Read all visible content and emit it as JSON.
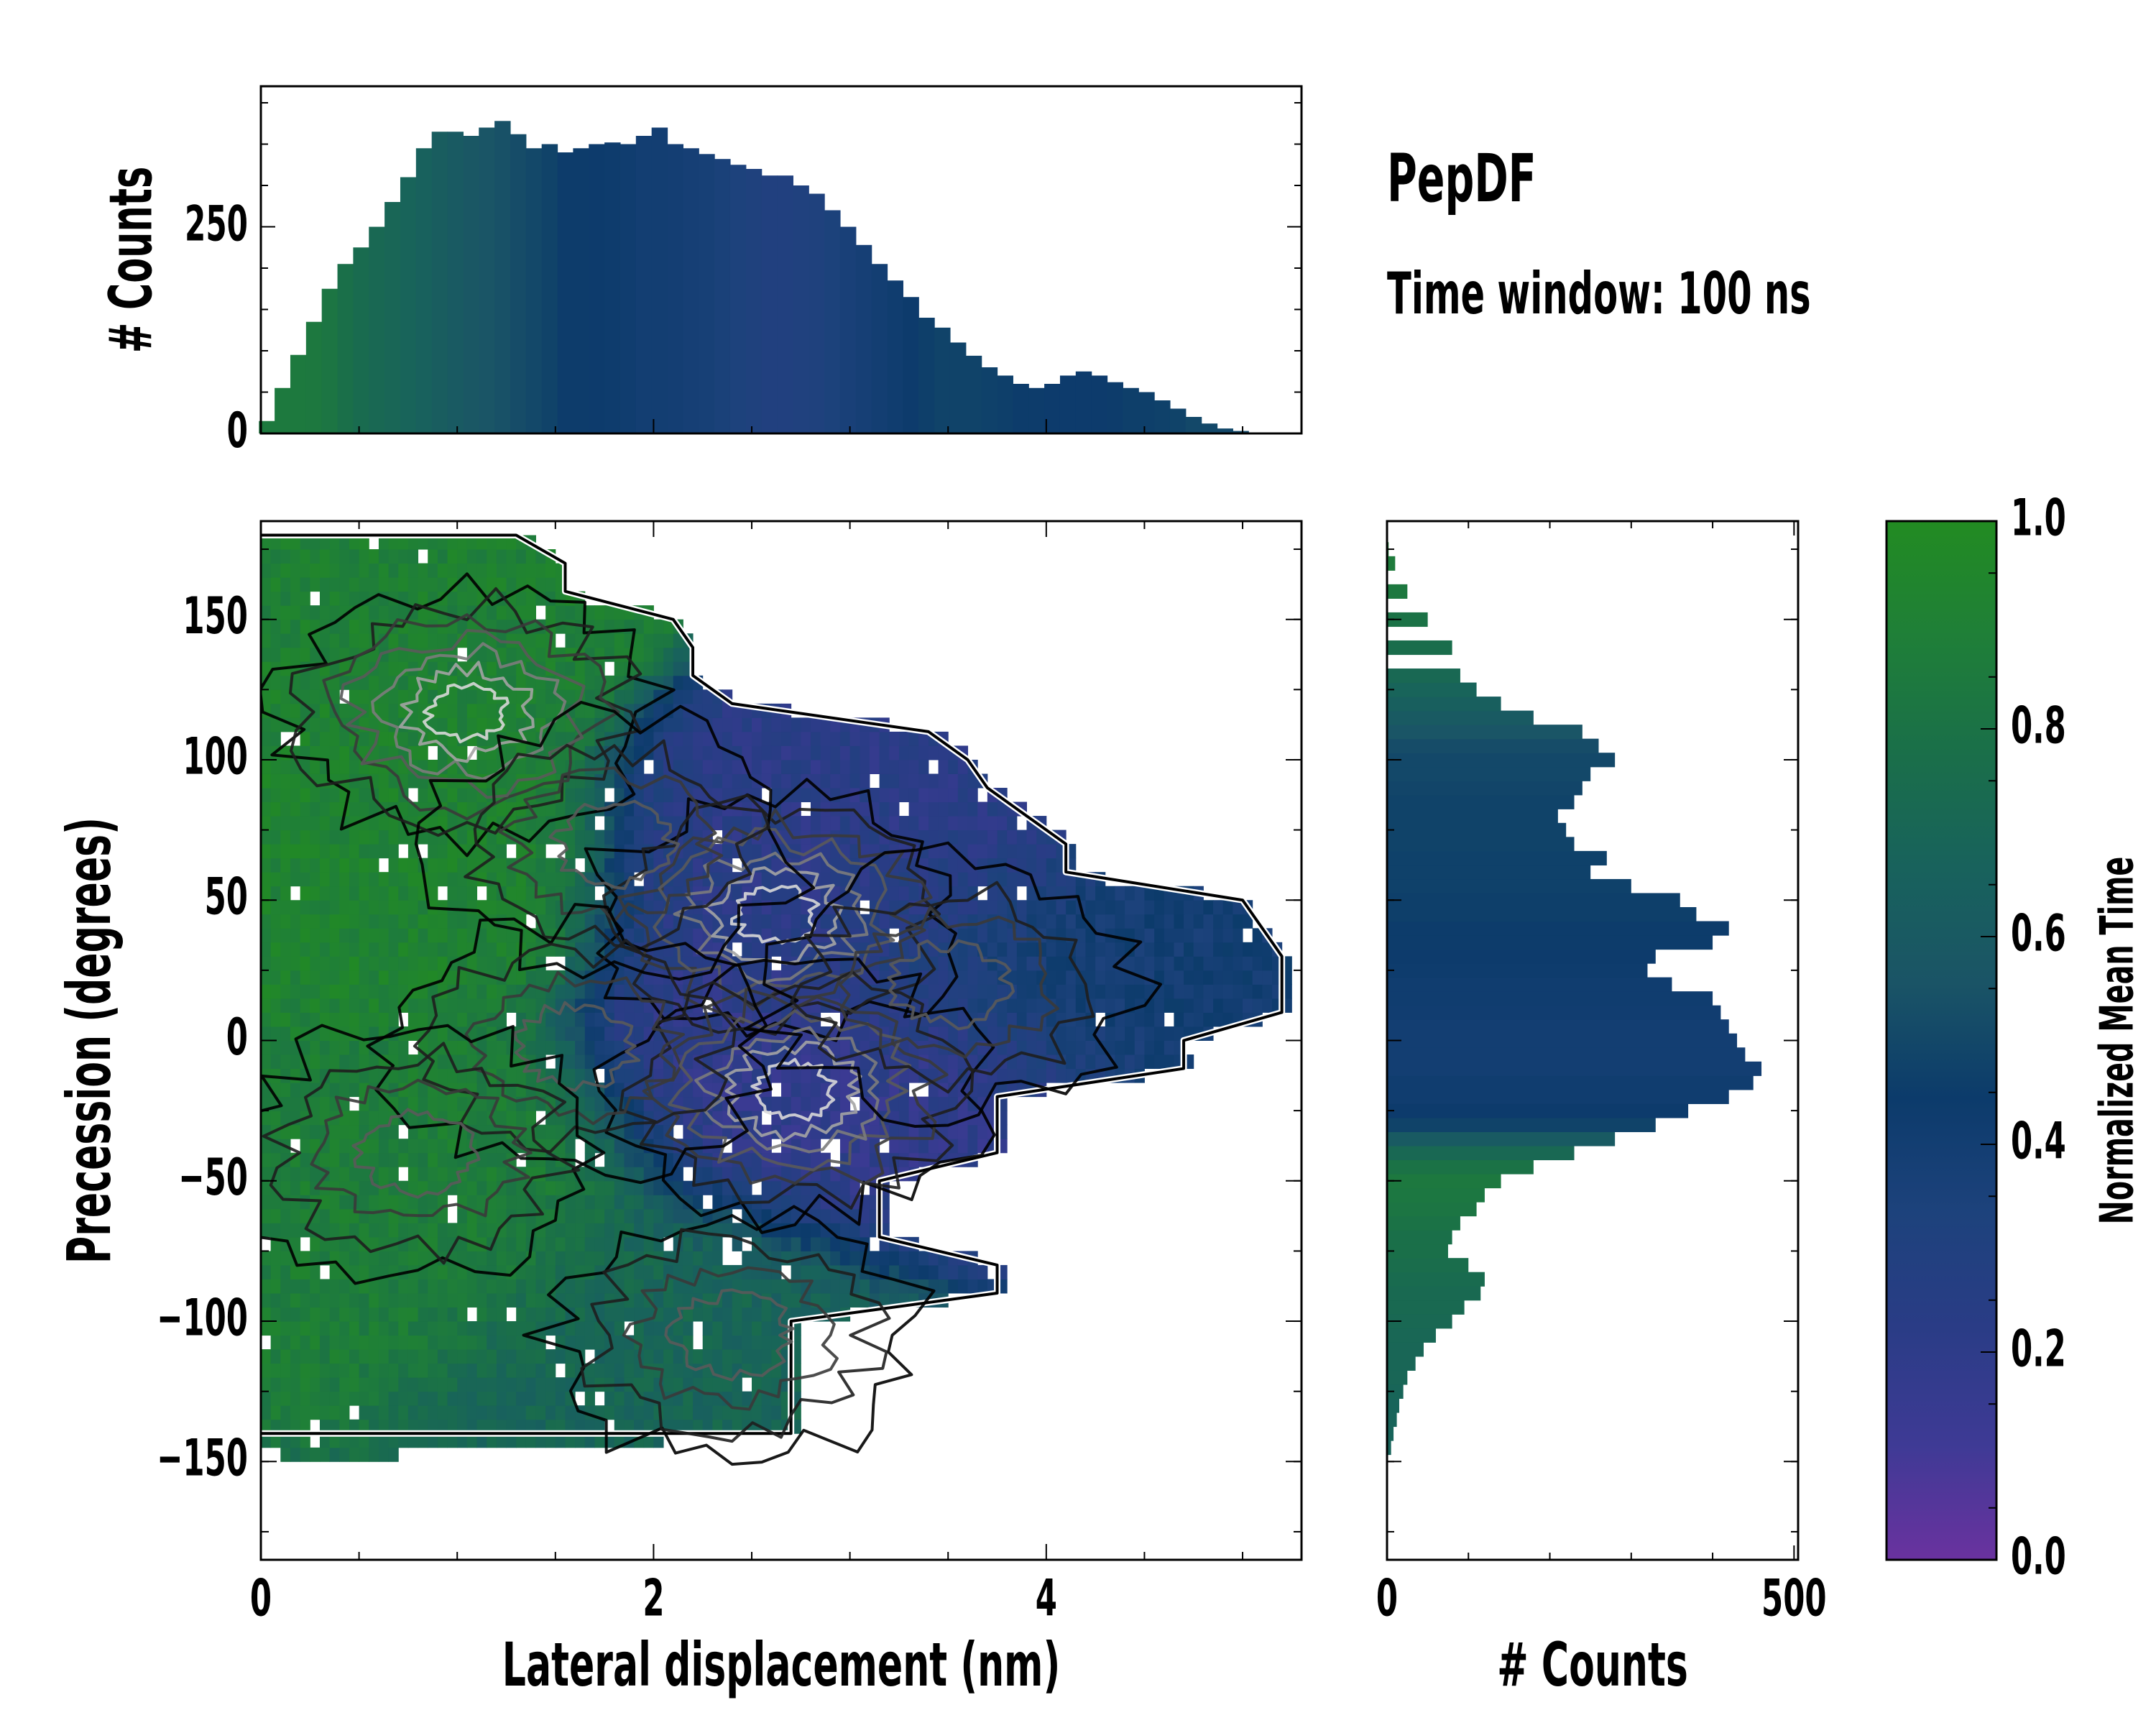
{
  "title": "PepDF",
  "subtitle": "Time window: 100 ns",
  "colors": {
    "colormap": [
      "#6a329f",
      "#3e3a95",
      "#2a3c86",
      "#1d427c",
      "#0c3b6b",
      "#1a5466",
      "#18625c",
      "#1a6f49",
      "#1f7f38",
      "#228b22"
    ],
    "contour_levels": [
      "#000000",
      "#1e1e1e",
      "#3a3a3a",
      "#5a5a5a",
      "#7c7c7c",
      "#a4a4a4",
      "#d8d8d8"
    ]
  },
  "chart_data": [
    {
      "id": "marginal-x",
      "type": "bar",
      "title": "",
      "xlabel": "",
      "ylabel": "# Counts",
      "xlim": [
        0,
        5.3
      ],
      "ylim": [
        0,
        420
      ],
      "yticks": [
        0,
        250
      ],
      "x": [
        0.03,
        0.11,
        0.19,
        0.27,
        0.35,
        0.43,
        0.51,
        0.59,
        0.67,
        0.75,
        0.83,
        0.91,
        0.99,
        1.07,
        1.15,
        1.23,
        1.31,
        1.39,
        1.47,
        1.55,
        1.63,
        1.71,
        1.79,
        1.87,
        1.95,
        2.03,
        2.11,
        2.19,
        2.27,
        2.35,
        2.43,
        2.51,
        2.59,
        2.67,
        2.75,
        2.83,
        2.91,
        2.99,
        3.07,
        3.15,
        3.23,
        3.31,
        3.39,
        3.47,
        3.55,
        3.63,
        3.71,
        3.79,
        3.87,
        3.95,
        4.03,
        4.11,
        4.19,
        4.27,
        4.35,
        4.43,
        4.51,
        4.59,
        4.67,
        4.75,
        4.83,
        4.91,
        4.99,
        5.07,
        5.15,
        5.23
      ],
      "values": [
        15,
        55,
        95,
        135,
        175,
        205,
        225,
        250,
        280,
        310,
        345,
        365,
        365,
        360,
        370,
        378,
        362,
        345,
        350,
        340,
        345,
        350,
        352,
        350,
        360,
        370,
        350,
        345,
        338,
        332,
        325,
        320,
        312,
        312,
        300,
        290,
        270,
        250,
        228,
        205,
        185,
        165,
        140,
        128,
        110,
        94,
        80,
        70,
        60,
        55,
        60,
        70,
        75,
        70,
        62,
        55,
        50,
        40,
        30,
        20,
        12,
        6,
        3,
        1,
        0,
        0
      ],
      "colorvalues": [
        0.85,
        0.85,
        0.85,
        0.84,
        0.82,
        0.78,
        0.74,
        0.72,
        0.7,
        0.68,
        0.66,
        0.63,
        0.6,
        0.58,
        0.56,
        0.54,
        0.52,
        0.5,
        0.48,
        0.45,
        0.45,
        0.44,
        0.43,
        0.42,
        0.4,
        0.4,
        0.39,
        0.38,
        0.37,
        0.35,
        0.33,
        0.32,
        0.3,
        0.3,
        0.31,
        0.32,
        0.34,
        0.36,
        0.38,
        0.4,
        0.42,
        0.44,
        0.46,
        0.48,
        0.48,
        0.48,
        0.47,
        0.46,
        0.45,
        0.45,
        0.44,
        0.44,
        0.44,
        0.44,
        0.45,
        0.46,
        0.46,
        0.47,
        0.48,
        0.5,
        0.5,
        0.5,
        0.5,
        0.5,
        0.5,
        0.5
      ]
    },
    {
      "id": "joint-heatmap",
      "type": "heatmap",
      "title": "",
      "xlabel": "Lateral displacement (nm)",
      "ylabel": "Precession (degrees)",
      "xlim": [
        0,
        5.3
      ],
      "ylim": [
        -185,
        185
      ],
      "xticks": [
        0,
        2,
        4
      ],
      "yticks": [
        -150,
        -100,
        -50,
        0,
        50,
        100,
        150
      ],
      "colorbar_range": [
        0,
        1
      ],
      "outline_angle": [
        -180,
        -170,
        -160,
        -150,
        -140,
        -130,
        -120,
        -110,
        -100,
        -90,
        -80,
        -70,
        -60,
        -50,
        -40,
        -30,
        -20,
        -10,
        0,
        10,
        20,
        30,
        40,
        50,
        60,
        70,
        80,
        90,
        100,
        110,
        120,
        130,
        140,
        150,
        160,
        170,
        180
      ],
      "outline_max_x": [
        0,
        0,
        0,
        0,
        2.7,
        2.7,
        2.7,
        2.7,
        2.7,
        3.75,
        3.75,
        3.15,
        3.15,
        3.15,
        3.75,
        3.75,
        3.75,
        4.7,
        4.7,
        5.2,
        5.2,
        5.2,
        5.1,
        5.0,
        4.1,
        4.1,
        3.9,
        3.7,
        3.6,
        3.4,
        2.4,
        2.2,
        2.2,
        2.1,
        1.55,
        1.55,
        1.3
      ],
      "clusters": [
        {
          "x": 0.5,
          "angle": 158,
          "value": 0.9
        },
        {
          "x": 0.3,
          "angle": 75,
          "value": 0.92
        },
        {
          "x": 0.6,
          "angle": -60,
          "value": 0.88
        },
        {
          "x": 2.2,
          "angle": -110,
          "value": 0.7
        },
        {
          "x": 3.2,
          "angle": 70,
          "value": 0.22
        },
        {
          "x": 3.2,
          "angle": -25,
          "value": 0.18
        },
        {
          "x": 4.3,
          "angle": 25,
          "value": 0.4
        }
      ],
      "density_peaks": [
        {
          "x": 1.05,
          "angle": 117
        },
        {
          "x": 2.62,
          "angle": 45
        },
        {
          "x": 2.72,
          "angle": -18
        },
        {
          "x": 3.5,
          "angle": 20
        },
        {
          "x": 1.8,
          "angle": 70
        },
        {
          "x": 1.6,
          "angle": -2
        },
        {
          "x": 0.8,
          "angle": -40
        },
        {
          "x": 2.4,
          "angle": -105
        }
      ]
    },
    {
      "id": "marginal-y",
      "type": "bar",
      "orientation": "horizontal",
      "title": "",
      "xlabel": "# Counts",
      "ylabel": "",
      "xlim": [
        0,
        505
      ],
      "ylim": [
        -185,
        185
      ],
      "xticks": [
        0,
        500
      ],
      "y": [
        -145,
        -140,
        -135,
        -130,
        -125,
        -120,
        -115,
        -110,
        -105,
        -100,
        -95,
        -90,
        -85,
        -80,
        -75,
        -70,
        -65,
        -60,
        -55,
        -50,
        -45,
        -40,
        -35,
        -30,
        -25,
        -20,
        -15,
        -10,
        -5,
        0,
        5,
        10,
        15,
        20,
        25,
        30,
        35,
        40,
        45,
        50,
        55,
        60,
        65,
        70,
        75,
        80,
        85,
        90,
        95,
        100,
        105,
        110,
        115,
        120,
        125,
        130,
        140,
        150,
        160,
        170,
        175
      ],
      "values": [
        5,
        8,
        12,
        15,
        20,
        25,
        35,
        45,
        60,
        80,
        95,
        115,
        120,
        100,
        75,
        80,
        90,
        110,
        120,
        140,
        180,
        230,
        280,
        330,
        370,
        420,
        450,
        460,
        440,
        430,
        420,
        410,
        400,
        350,
        320,
        330,
        400,
        420,
        380,
        360,
        300,
        250,
        270,
        230,
        220,
        210,
        230,
        240,
        250,
        280,
        260,
        240,
        180,
        140,
        110,
        90,
        80,
        50,
        25,
        10,
        2
      ],
      "colorvalues": [
        0.68,
        0.68,
        0.68,
        0.68,
        0.69,
        0.7,
        0.7,
        0.7,
        0.71,
        0.72,
        0.73,
        0.73,
        0.74,
        0.76,
        0.78,
        0.78,
        0.8,
        0.82,
        0.83,
        0.84,
        0.8,
        0.72,
        0.6,
        0.48,
        0.44,
        0.42,
        0.42,
        0.4,
        0.4,
        0.4,
        0.4,
        0.41,
        0.42,
        0.42,
        0.43,
        0.44,
        0.45,
        0.45,
        0.46,
        0.46,
        0.47,
        0.47,
        0.47,
        0.48,
        0.48,
        0.48,
        0.48,
        0.49,
        0.5,
        0.5,
        0.52,
        0.56,
        0.6,
        0.64,
        0.68,
        0.72,
        0.76,
        0.8,
        0.84,
        0.86,
        0.88
      ]
    },
    {
      "id": "colorbar",
      "type": "colorbar",
      "label": "Normalized Mean Time",
      "range": [
        0,
        1
      ],
      "ticks": [
        "0.0",
        "0.2",
        "0.4",
        "0.6",
        "0.8",
        "1.0"
      ]
    }
  ]
}
